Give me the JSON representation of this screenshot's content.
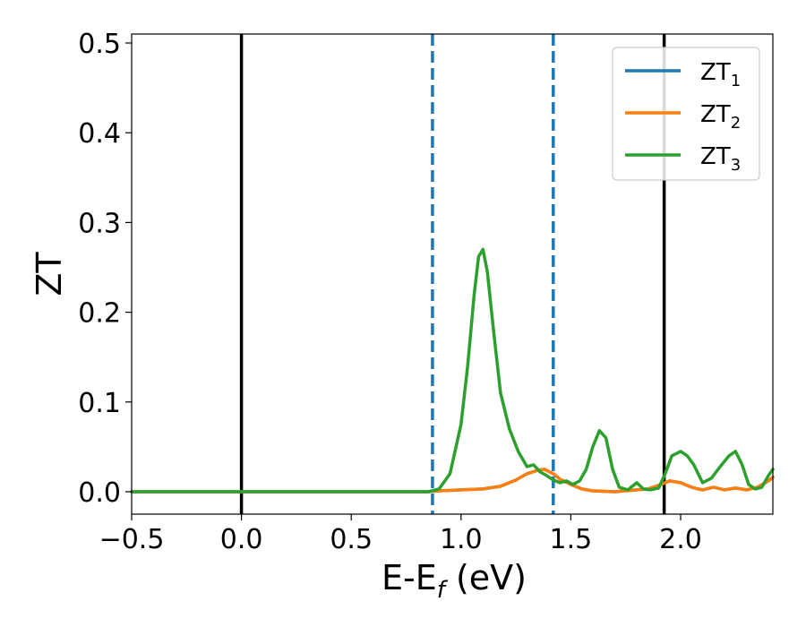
{
  "chart_data": {
    "type": "line",
    "xlabel": "E-E",
    "xlabel_sub": "f",
    "xlabel_unit": "(eV)",
    "ylabel": "ZT",
    "xlim": [
      -0.5,
      2.42
    ],
    "ylim": [
      -0.025,
      0.51
    ],
    "x_ticks": [
      {
        "value": -0.5,
        "label": "−0.5"
      },
      {
        "value": 0.0,
        "label": "0.0"
      },
      {
        "value": 0.5,
        "label": "0.5"
      },
      {
        "value": 1.0,
        "label": "1.0"
      },
      {
        "value": 1.5,
        "label": "1.5"
      },
      {
        "value": 2.0,
        "label": "2.0"
      }
    ],
    "y_ticks": [
      {
        "value": 0.0,
        "label": "0.0"
      },
      {
        "value": 0.1,
        "label": "0.1"
      },
      {
        "value": 0.2,
        "label": "0.2"
      },
      {
        "value": 0.3,
        "label": "0.3"
      },
      {
        "value": 0.4,
        "label": "0.4"
      },
      {
        "value": 0.5,
        "label": "0.5"
      }
    ],
    "grid": false,
    "legend_position": "top-right",
    "vlines": [
      {
        "x": 0.0,
        "style": "solid",
        "color": "#000000"
      },
      {
        "x": 1.925,
        "style": "solid",
        "color": "#000000"
      },
      {
        "x": 0.87,
        "style": "dashed",
        "color": "#1f77b4"
      },
      {
        "x": 1.42,
        "style": "dashed",
        "color": "#1f77b4"
      }
    ],
    "series": [
      {
        "name": "ZT",
        "sub": "1",
        "color": "#1f77b4",
        "x": [
          -0.5,
          0.0,
          0.5,
          0.85,
          0.9,
          1.0,
          1.1,
          1.18,
          1.25,
          1.3,
          1.35,
          1.38,
          1.42,
          1.45,
          1.5,
          1.55,
          1.6,
          1.7,
          1.8,
          1.85,
          1.9,
          1.95,
          2.0,
          2.05,
          2.08,
          2.1,
          2.15,
          2.2,
          2.25,
          2.3,
          2.35,
          2.4,
          2.42
        ],
        "y": [
          0.0,
          0.0,
          0.0,
          0.0,
          0.001,
          0.002,
          0.003,
          0.006,
          0.013,
          0.02,
          0.024,
          0.025,
          0.02,
          0.014,
          0.008,
          0.003,
          0.001,
          0.0,
          0.002,
          0.003,
          0.007,
          0.012,
          0.01,
          0.005,
          0.003,
          0.002,
          0.005,
          0.002,
          0.004,
          0.002,
          0.005,
          0.012,
          0.016
        ]
      },
      {
        "name": "ZT",
        "sub": "2",
        "color": "#ff7f0e",
        "x": [
          -0.5,
          0.0,
          0.5,
          0.85,
          0.9,
          1.0,
          1.1,
          1.18,
          1.25,
          1.3,
          1.35,
          1.38,
          1.42,
          1.45,
          1.5,
          1.55,
          1.6,
          1.7,
          1.8,
          1.85,
          1.9,
          1.95,
          2.0,
          2.05,
          2.08,
          2.1,
          2.15,
          2.2,
          2.25,
          2.3,
          2.35,
          2.4,
          2.42
        ],
        "y": [
          0.0,
          0.0,
          0.0,
          0.0,
          0.001,
          0.002,
          0.003,
          0.006,
          0.013,
          0.02,
          0.024,
          0.025,
          0.02,
          0.014,
          0.008,
          0.003,
          0.001,
          0.0,
          0.002,
          0.003,
          0.007,
          0.012,
          0.01,
          0.005,
          0.003,
          0.002,
          0.005,
          0.002,
          0.004,
          0.002,
          0.005,
          0.012,
          0.016
        ]
      },
      {
        "name": "ZT",
        "sub": "3",
        "color": "#2ca02c",
        "x": [
          -0.5,
          0.0,
          0.5,
          0.85,
          0.9,
          0.95,
          1.0,
          1.03,
          1.06,
          1.08,
          1.1,
          1.12,
          1.15,
          1.18,
          1.22,
          1.26,
          1.3,
          1.33,
          1.36,
          1.39,
          1.42,
          1.45,
          1.48,
          1.51,
          1.54,
          1.57,
          1.6,
          1.63,
          1.66,
          1.69,
          1.72,
          1.76,
          1.8,
          1.83,
          1.86,
          1.9,
          1.93,
          1.96,
          2.0,
          2.03,
          2.06,
          2.1,
          2.14,
          2.18,
          2.22,
          2.25,
          2.28,
          2.31,
          2.34,
          2.37,
          2.4,
          2.42
        ],
        "y": [
          0.0,
          0.0,
          0.0,
          0.0,
          0.003,
          0.02,
          0.075,
          0.14,
          0.22,
          0.262,
          0.27,
          0.245,
          0.175,
          0.11,
          0.07,
          0.045,
          0.028,
          0.03,
          0.022,
          0.018,
          0.013,
          0.01,
          0.012,
          0.008,
          0.012,
          0.025,
          0.05,
          0.068,
          0.06,
          0.025,
          0.005,
          0.002,
          0.01,
          0.003,
          0.002,
          0.004,
          0.02,
          0.04,
          0.045,
          0.04,
          0.03,
          0.01,
          0.015,
          0.028,
          0.04,
          0.045,
          0.03,
          0.008,
          0.003,
          0.005,
          0.018,
          0.025
        ]
      }
    ]
  }
}
